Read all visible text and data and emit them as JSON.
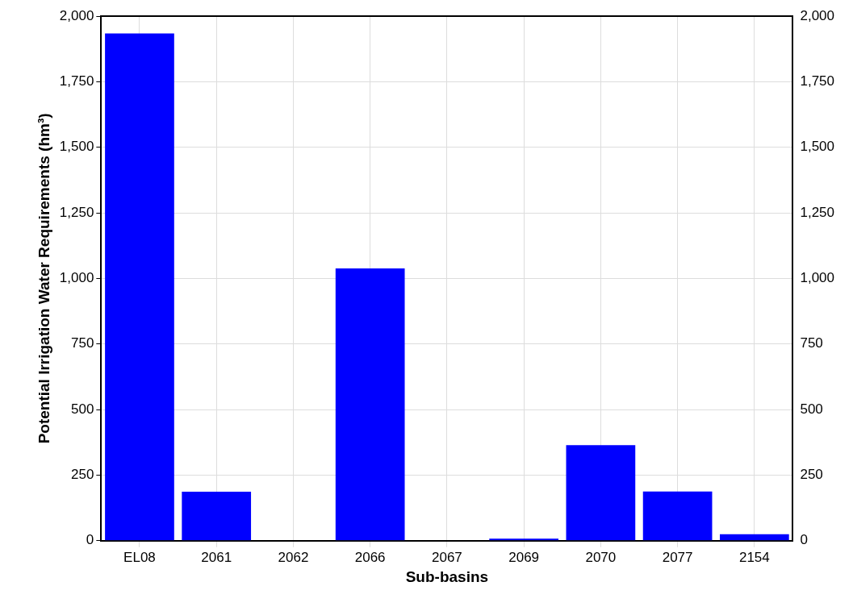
{
  "chart_data": {
    "type": "bar",
    "xlabel": "Sub-basins",
    "ylabel": "Potential Irrigation Water Requirements (hm³)",
    "categories": [
      "EL08",
      "2061",
      "2062",
      "2066",
      "2067",
      "2069",
      "2070",
      "2077",
      "2154"
    ],
    "series": [
      {
        "color": "#0000ff",
        "values": [
          1934,
          187,
          0,
          1038,
          0,
          8,
          364,
          188,
          25
        ]
      }
    ],
    "ylim": [
      0,
      2000
    ],
    "yticks": [
      {
        "value": 0,
        "label": "0"
      },
      {
        "value": 250,
        "label": "250"
      },
      {
        "value": 500,
        "label": "500"
      },
      {
        "value": 750,
        "label": "750"
      },
      {
        "value": 1000,
        "label": "1,000"
      },
      {
        "value": 1250,
        "label": "1,250"
      },
      {
        "value": 1500,
        "label": "1,500"
      },
      {
        "value": 1750,
        "label": "1,750"
      },
      {
        "value": 2000,
        "label": "2,000"
      }
    ],
    "y2lim": [
      0,
      2000
    ],
    "y2ticks": [
      {
        "value": 0,
        "label": "0"
      },
      {
        "value": 250,
        "label": "250"
      },
      {
        "value": 500,
        "label": "500"
      },
      {
        "value": 750,
        "label": "750"
      },
      {
        "value": 1000,
        "label": "1,000"
      },
      {
        "value": 1250,
        "label": "1,250"
      },
      {
        "value": 1500,
        "label": "1,500"
      },
      {
        "value": 1750,
        "label": "1,750"
      },
      {
        "value": 2000,
        "label": "2,000"
      }
    ],
    "grid": true,
    "legend": false
  }
}
